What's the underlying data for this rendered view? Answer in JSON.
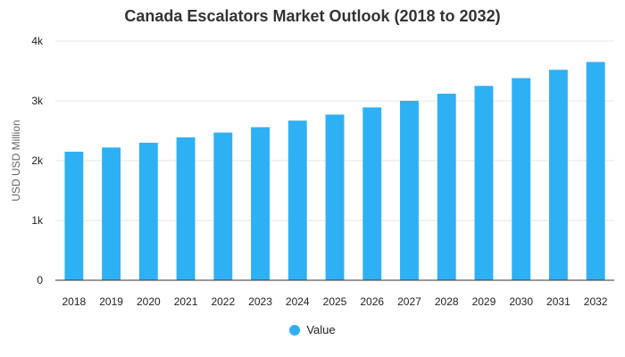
{
  "chart_data": {
    "type": "bar",
    "title": "Canada Escalators Market Outlook (2018 to 2032)",
    "xlabel": "",
    "ylabel": "USD USD Million",
    "categories": [
      "2018",
      "2019",
      "2020",
      "2021",
      "2022",
      "2023",
      "2024",
      "2025",
      "2026",
      "2027",
      "2028",
      "2029",
      "2030",
      "2031",
      "2032"
    ],
    "series": [
      {
        "name": "Value",
        "values": [
          2150,
          2220,
          2300,
          2390,
          2470,
          2560,
          2670,
          2770,
          2890,
          3000,
          3120,
          3250,
          3380,
          3520,
          3650
        ]
      }
    ],
    "ylim": [
      0,
      4000
    ],
    "y_ticks": [
      "0",
      "1k",
      "2k",
      "3k",
      "4k"
    ],
    "y_tick_values": [
      0,
      1000,
      2000,
      3000,
      4000
    ],
    "grid": true,
    "legend_position": "bottom-center",
    "bar_color": "#2eb0f5"
  }
}
